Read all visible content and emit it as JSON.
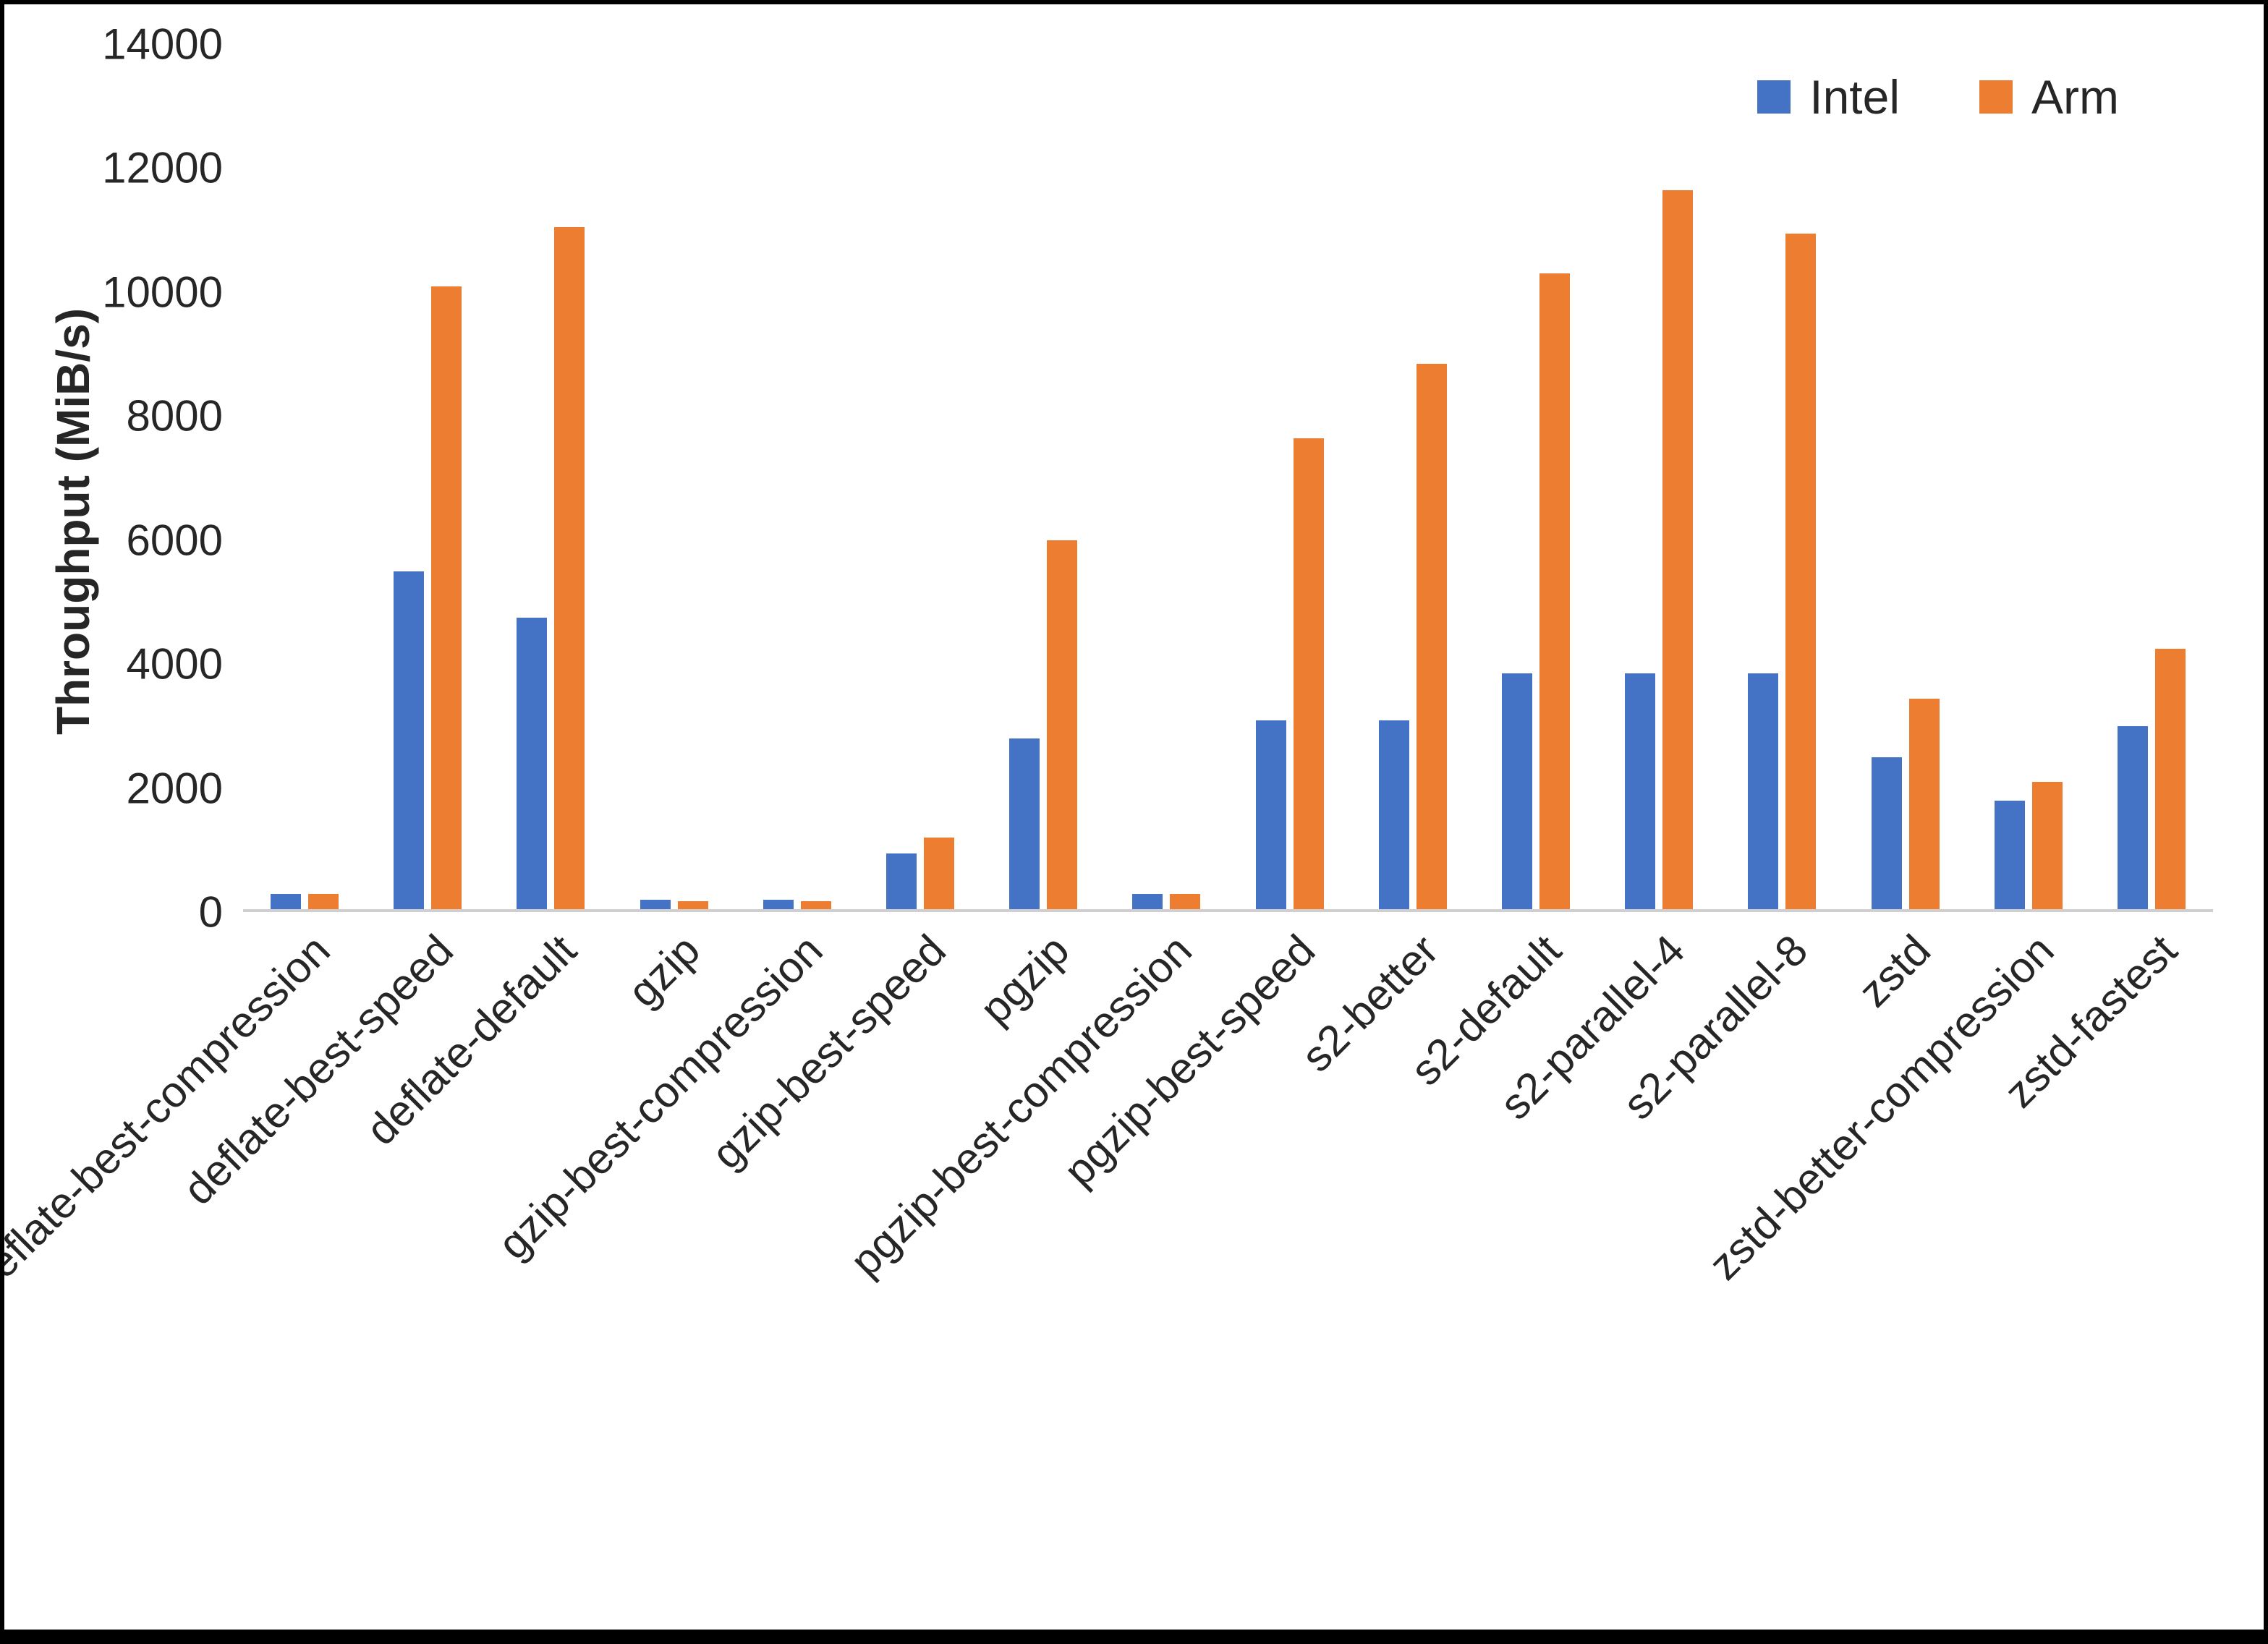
{
  "chart_data": {
    "type": "bar",
    "title": "",
    "xlabel": "",
    "ylabel": "Throughput (MiB/s)",
    "ylim": [
      0,
      14000
    ],
    "yticks": [
      0,
      2000,
      4000,
      6000,
      8000,
      10000,
      12000,
      14000
    ],
    "grid": false,
    "legend_position": "top-right",
    "categories": [
      "deflate-best-compression",
      "deflate-best-speed",
      "deflate-default",
      "gzip",
      "gzip-best-compression",
      "gzip-best-speed",
      "pgzip",
      "pgzip-best-compression",
      "pgzip-best-speed",
      "s2-better",
      "s2-default",
      "s2-parallel-4",
      "s2-parallel-8",
      "zstd",
      "zstd-better-compression",
      "zstd-fastest"
    ],
    "series": [
      {
        "name": "Intel",
        "color": "#4472C4",
        "values": [
          250,
          5450,
          4700,
          150,
          150,
          900,
          2750,
          250,
          3050,
          3050,
          3800,
          3800,
          3800,
          2450,
          1750,
          2950
        ]
      },
      {
        "name": "Arm",
        "color": "#ED7D31",
        "values": [
          250,
          10050,
          11000,
          130,
          130,
          1150,
          5950,
          250,
          7600,
          8800,
          10250,
          11600,
          10900,
          3400,
          2050,
          4200
        ]
      }
    ]
  }
}
